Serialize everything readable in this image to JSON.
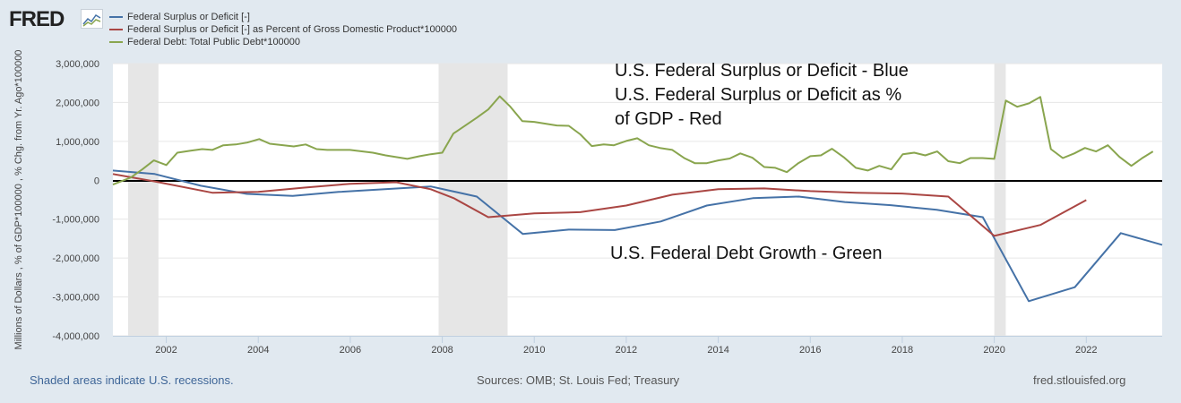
{
  "header": {
    "logo_text": "FRED",
    "logo_icon": "fred-chart-icon"
  },
  "chart_data": {
    "type": "line",
    "title": "",
    "xlabel": "",
    "ylabel": "Millions of Dollars , % of GDP*100000 , % Chg. from Yr. Ago*100000",
    "xlim": [
      2000.84,
      2023.65
    ],
    "ylim": [
      -4000000,
      3000000
    ],
    "grid": true,
    "legend_position": "top-left",
    "x_ticks": [
      "2002",
      "2004",
      "2006",
      "2008",
      "2010",
      "2012",
      "2014",
      "2016",
      "2018",
      "2020",
      "2022"
    ],
    "y_ticks": [
      "3,000,000",
      "2,000,000",
      "1,000,000",
      "0",
      "-1,000,000",
      "-2,000,000",
      "-3,000,000",
      "-4,000,000"
    ],
    "y_tick_values": [
      3000000,
      2000000,
      1000000,
      0,
      -1000000,
      -2000000,
      -3000000,
      -4000000
    ],
    "x_tick_values": [
      2002,
      2004,
      2006,
      2008,
      2010,
      2012,
      2014,
      2016,
      2018,
      2020,
      2022
    ],
    "recessions": [
      [
        2001.17,
        2001.83
      ],
      [
        2007.92,
        2009.42
      ],
      [
        2020.0,
        2020.25
      ]
    ],
    "series": [
      {
        "name": "Federal Surplus or Deficit [-]",
        "color": "#4572a7",
        "x": [
          2000.84,
          2001.75,
          2002.75,
          2003.75,
          2004.75,
          2005.75,
          2006.75,
          2007.75,
          2008.75,
          2009.75,
          2010.75,
          2011.75,
          2012.75,
          2013.75,
          2014.75,
          2015.75,
          2016.75,
          2017.75,
          2018.75,
          2019.75,
          2020.75,
          2021.75,
          2022.75,
          2023.65
        ],
        "y": [
          250000,
          160000,
          -140000,
          -350000,
          -400000,
          -300000,
          -230000,
          -160000,
          -420000,
          -1380000,
          -1270000,
          -1280000,
          -1060000,
          -650000,
          -460000,
          -420000,
          -560000,
          -640000,
          -760000,
          -950000,
          -3110000,
          -2750000,
          -1360000,
          -1660000
        ]
      },
      {
        "name": "Federal Surplus or Deficit [-] as Percent of Gross Domestic Product*100000",
        "color": "#aa4643",
        "x": [
          2000.84,
          2001.75,
          2003.0,
          2004.0,
          2005.0,
          2006.0,
          2007.0,
          2007.75,
          2008.25,
          2009.0,
          2010.0,
          2011.0,
          2012.0,
          2013.0,
          2014.0,
          2015.0,
          2016.0,
          2017.0,
          2018.0,
          2019.0,
          2020.0,
          2021.0,
          2022.0
        ],
        "y": [
          160000,
          -30000,
          -320000,
          -300000,
          -190000,
          -90000,
          -50000,
          -230000,
          -460000,
          -950000,
          -850000,
          -820000,
          -650000,
          -370000,
          -230000,
          -210000,
          -280000,
          -320000,
          -340000,
          -420000,
          -1430000,
          -1150000,
          -510000
        ]
      },
      {
        "name": "Federal Debt: Total Public Debt*100000",
        "color": "#89a54e",
        "x": [
          2000.84,
          2001.23,
          2001.48,
          2001.73,
          2002.0,
          2002.24,
          2002.53,
          2002.78,
          2003.0,
          2003.24,
          2003.51,
          2003.76,
          2004.02,
          2004.25,
          2004.77,
          2005.03,
          2005.27,
          2005.5,
          2005.99,
          2006.49,
          2006.77,
          2007.24,
          2007.51,
          2007.75,
          2008.0,
          2008.24,
          2008.75,
          2009.0,
          2009.25,
          2009.48,
          2009.74,
          2010.0,
          2010.49,
          2010.75,
          2011.0,
          2011.25,
          2011.51,
          2011.73,
          2012.0,
          2012.24,
          2012.49,
          2012.73,
          2013.0,
          2013.26,
          2013.49,
          2013.75,
          2014.0,
          2014.25,
          2014.48,
          2014.74,
          2015.0,
          2015.24,
          2015.49,
          2015.74,
          2016.0,
          2016.23,
          2016.47,
          2016.74,
          2016.99,
          2017.25,
          2017.5,
          2017.76,
          2018.01,
          2018.26,
          2018.5,
          2018.76,
          2019.0,
          2019.25,
          2019.48,
          2019.74,
          2020.0,
          2020.25,
          2020.5,
          2020.76,
          2021.0,
          2021.23,
          2021.49,
          2021.74,
          2021.97,
          2022.21,
          2022.47,
          2022.72,
          2022.98,
          2023.23,
          2023.45
        ],
        "y": [
          -110000,
          70000,
          280000,
          510000,
          390000,
          710000,
          760000,
          800000,
          780000,
          900000,
          920000,
          970000,
          1060000,
          940000,
          870000,
          920000,
          800000,
          780000,
          780000,
          710000,
          640000,
          550000,
          620000,
          670000,
          710000,
          1200000,
          1610000,
          1820000,
          2160000,
          1890000,
          1520000,
          1500000,
          1410000,
          1400000,
          1180000,
          880000,
          920000,
          900000,
          1010000,
          1080000,
          900000,
          830000,
          780000,
          570000,
          440000,
          440000,
          510000,
          560000,
          690000,
          580000,
          340000,
          320000,
          210000,
          440000,
          620000,
          640000,
          810000,
          580000,
          320000,
          250000,
          370000,
          280000,
          670000,
          710000,
          640000,
          740000,
          490000,
          440000,
          570000,
          570000,
          550000,
          2050000,
          1890000,
          1980000,
          2140000,
          800000,
          570000,
          690000,
          830000,
          740000,
          900000,
          600000,
          370000,
          580000,
          740000
        ]
      }
    ],
    "annotations": [
      "U.S. Federal Surplus or Deficit - Blue",
      "U.S. Federal Surplus or Deficit as %",
      "of GDP - Red",
      "U.S. Federal Debt Growth - Green"
    ]
  },
  "footer": {
    "note": "Shaded areas indicate U.S. recessions.",
    "sources": "Sources: OMB; St. Louis Fed; Treasury",
    "site": "fred.stlouisfed.org"
  }
}
